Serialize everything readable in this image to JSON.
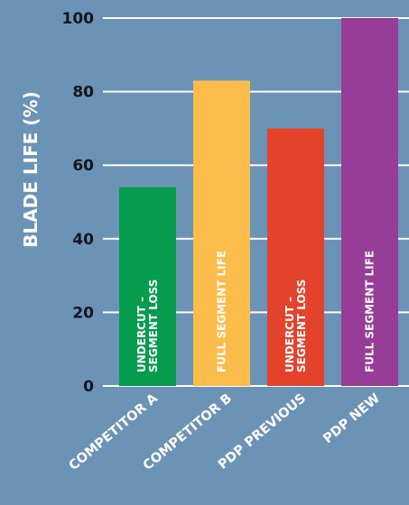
{
  "chart_data": {
    "type": "bar",
    "title": "",
    "ylabel": "BLADE LIFE (%)",
    "xlabel": "",
    "ylim": [
      0,
      100
    ],
    "yticks": [
      0,
      20,
      40,
      60,
      80,
      100
    ],
    "grid": true,
    "categories": [
      "COMPETITOR A",
      "COMPETITOR B",
      "PDP PREVIOUS",
      "PDP NEW"
    ],
    "values": [
      54,
      83,
      70,
      100
    ],
    "bar_labels": [
      [
        "UNDERCUT –",
        "SEGMENT LOSS"
      ],
      [
        "FULL SEGMENT LIFE"
      ],
      [
        "UNDERCUT –",
        "SEGMENT LOSS"
      ],
      [
        "FULL SEGMENT LIFE"
      ]
    ],
    "colors": [
      "#069c4e",
      "#fcbc4c",
      "#e4432b",
      "#973c97"
    ],
    "background": "#6b93b5"
  }
}
